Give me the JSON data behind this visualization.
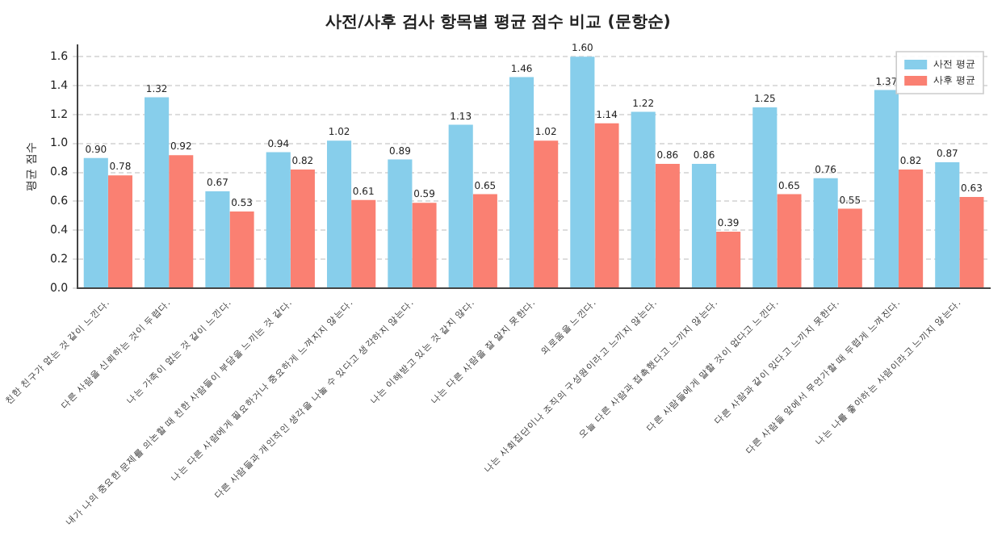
{
  "chart_data": {
    "type": "bar",
    "title": "사전/사후 검사 항목별 평균 점수 비교 (문항순)",
    "ylabel": "평균 점수",
    "categories": [
      "친한 친구가 없는 것 같이 느낀다.",
      "다른 사람을 신뢰하는 것이 두렵다.",
      "나는 가족이 없는 것 같이 느낀다.",
      "내가 나의 중요한 문제를 의논할 때 친한 사람들이 부담을 느끼는 것 같다.",
      "나는 다른 사람에게 필요하거나 중요하게 느껴지지 않는다.",
      "다른 사람들과 개인적인 생각을 나눌 수 있다고 생각하지 않는다.",
      "나는 이해받고 있는 것 같지 않다.",
      "나는 다른 사람을 잘 알지 못한다.",
      "외로움을 느낀다.",
      "나는 사회집단이나 조직의 구성원이라고 느끼지 않는다.",
      "오늘 다른 사람과 접촉했다고 느끼지 않는다.",
      "다른 사람들에게 말할 것이 없다고 느낀다.",
      "다른 사람과 같이 있다고 느끼지 못한다.",
      "다른 사람들 앞에서 무언가할 때 두렵게 느껴진다.",
      "나는 나를 좋아하는 사람이라고 느끼지 않는다."
    ],
    "series": [
      {
        "name": "사전 평균",
        "color": "#87ceeb",
        "values": [
          0.9,
          1.32,
          0.67,
          0.94,
          1.02,
          0.89,
          1.13,
          1.46,
          1.6,
          1.22,
          0.86,
          1.25,
          0.76,
          1.37,
          0.87
        ],
        "value_labels": [
          "0.90",
          "1.32",
          "0.67",
          "0.94",
          "1.02",
          "0.89",
          "1.13",
          "1.46",
          "1.60",
          "1.22",
          "0.86",
          "1.25",
          "0.76",
          "1.37",
          "0.87"
        ]
      },
      {
        "name": "사후 평균",
        "color": "#fa8072",
        "values": [
          0.78,
          0.92,
          0.53,
          0.82,
          0.61,
          0.59,
          0.65,
          1.02,
          1.14,
          0.86,
          0.39,
          0.65,
          0.55,
          0.82,
          0.63
        ],
        "value_labels": [
          "0.78",
          "0.92",
          "0.53",
          "0.82",
          "0.61",
          "0.59",
          "0.65",
          "1.02",
          "1.14",
          "0.86",
          "0.39",
          "0.65",
          "0.55",
          "0.82",
          "0.63"
        ]
      }
    ],
    "ylim": [
      0,
      1.68
    ],
    "yticks": [
      {
        "value": 0,
        "label": "0.0"
      },
      {
        "value": 0.2,
        "label": "0.2"
      },
      {
        "value": 0.4,
        "label": "0.4"
      },
      {
        "value": 0.6,
        "label": "0.6"
      },
      {
        "value": 0.8,
        "label": "0.8"
      },
      {
        "value": 1.0,
        "label": "1.0"
      },
      {
        "value": 1.2,
        "label": "1.2"
      },
      {
        "value": 1.4,
        "label": "1.4"
      },
      {
        "value": 1.6,
        "label": "1.6"
      }
    ],
    "grid": "y",
    "legend": "top right"
  }
}
